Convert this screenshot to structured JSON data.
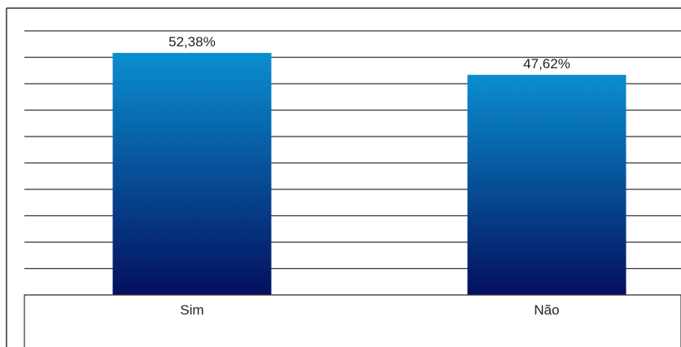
{
  "chart_data": {
    "type": "bar",
    "categories": [
      "Sim",
      "Não"
    ],
    "values": [
      52.38,
      47.62
    ],
    "value_labels": [
      "52,38%",
      "47,62%"
    ],
    "ylim": [
      0,
      57.14
    ],
    "grid": true,
    "colors": {
      "bar_top": "#0a8fd0",
      "bar_bottom": "#040f5e",
      "grid": "#333333",
      "frame": "#333333"
    }
  }
}
